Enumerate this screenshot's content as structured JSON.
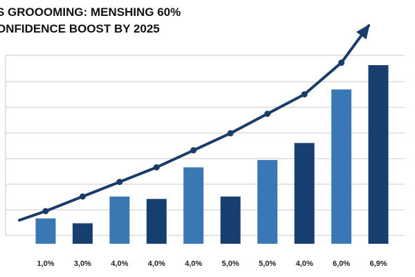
{
  "chart_data": {
    "type": "bar",
    "title_lines": [
      "S GROOOMING: MENSHING 60%",
      "ONFIDENCE BOOST BY 2025"
    ],
    "categories": [
      "1,0%",
      "3,0%",
      "4,0%",
      "4,0%",
      "4,0%",
      "5,0%",
      "5,0%",
      "4,0%",
      "6,0%",
      "6,9%"
    ],
    "values": [
      0.7,
      0.5,
      1.6,
      1.5,
      2.8,
      1.6,
      3.1,
      3.8,
      6.0,
      7.0
    ],
    "ylim": [
      0,
      7.4
    ],
    "grid": true,
    "trend_line": {
      "values": [
        1.0,
        1.6,
        2.2,
        2.8,
        3.5,
        4.2,
        5.0,
        5.8,
        7.1
      ],
      "arrow": true
    },
    "colors": {
      "bar_light": "#3a78b5",
      "bar_dark": "#163f6f",
      "trend": "#193c68",
      "grid": "#c8c8c8"
    },
    "bar_shades": [
      "light",
      "dark",
      "light",
      "dark",
      "light",
      "dark",
      "light",
      "dark",
      "light",
      "dark"
    ]
  }
}
